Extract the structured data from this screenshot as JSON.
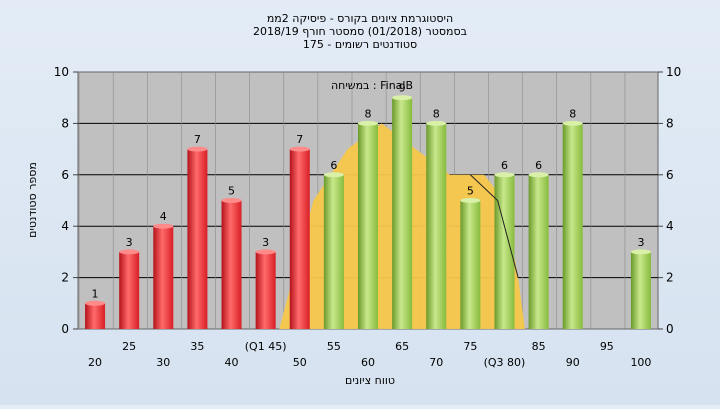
{
  "chart_data": {
    "type": "bar",
    "title_lines": [
      "היסטוגרמת ציונים בקורס - פיסיקה 2ממ",
      "בסמסטר  (01/2018)  סמסטר חורף 2018/19",
      "סטודנטים רשומים - 175"
    ],
    "annotation": "במשיחה : FinalB",
    "xlabel": "טווח ציונים",
    "ylabel": "מספר סטודנטים",
    "ylim": [
      0,
      10
    ],
    "yticks": [
      0,
      2,
      4,
      6,
      8,
      10
    ],
    "grid": true,
    "categories": [
      20,
      25,
      30,
      35,
      40,
      45,
      50,
      55,
      60,
      65,
      70,
      75,
      80,
      85,
      90,
      95,
      100
    ],
    "tick_labels_upper": {
      "25": "25",
      "35": "35",
      "45": "(Q1 45)",
      "55": "55",
      "65": "65",
      "75": "75",
      "85": "85",
      "95": "95"
    },
    "tick_labels_lower": {
      "20": "20",
      "30": "30",
      "40": "40",
      "50": "50",
      "60": "60",
      "70": "70",
      "80": "(Q3 80)",
      "90": "90",
      "100": "100"
    },
    "values": [
      1,
      3,
      4,
      7,
      5,
      3,
      7,
      6,
      8,
      9,
      8,
      5,
      6,
      6,
      8,
      0,
      3
    ],
    "failing_below": 55,
    "colors": {
      "fail": "#e8262b",
      "pass": "#8cc63f",
      "band": "#f6c74a",
      "plot_bg": "#c0c0c0",
      "line": "#222222"
    },
    "distribution_band": [
      {
        "x": 47,
        "y": 0
      },
      {
        "x": 52,
        "y": 5
      },
      {
        "x": 57,
        "y": 7
      },
      {
        "x": 62,
        "y": 8
      },
      {
        "x": 67,
        "y": 7
      },
      {
        "x": 72,
        "y": 6
      },
      {
        "x": 77,
        "y": 6
      },
      {
        "x": 80,
        "y": 5
      },
      {
        "x": 82,
        "y": 2
      },
      {
        "x": 83,
        "y": 0
      }
    ],
    "median_line": [
      {
        "x": 75,
        "y": 6
      },
      {
        "x": 79,
        "y": 5
      },
      {
        "x": 82,
        "y": 2
      }
    ]
  }
}
